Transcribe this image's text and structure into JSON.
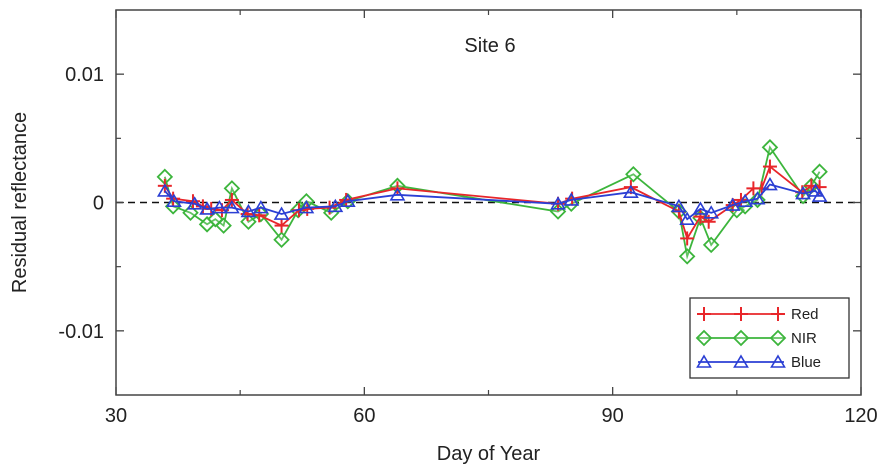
{
  "chart_data": {
    "type": "line",
    "title": "Site 6",
    "xlabel": "Day of Year",
    "ylabel": "Residual reflectance",
    "xlim": [
      30,
      120
    ],
    "ylim": [
      -0.015,
      0.015
    ],
    "xticks": [
      30,
      60,
      90,
      120
    ],
    "xtick_labels": [
      "30",
      "60",
      "90",
      "120"
    ],
    "yticks": [
      0.01,
      0,
      -0.01
    ],
    "ytick_labels": [
      "0.01",
      "0",
      "-0.01"
    ],
    "reference_line": {
      "y": 0,
      "style": "dashed"
    },
    "legend": {
      "position": "bottom-right"
    },
    "series": [
      {
        "name": "Red",
        "color": "#e8262a",
        "marker": "plus",
        "x": [
          35.9,
          36.9,
          39.3,
          40.5,
          41.5,
          42.8,
          44.0,
          45.9,
          47.3,
          50.0,
          52.1,
          53.1,
          55.8,
          57.8,
          64.0,
          83.4,
          85.1,
          92.2,
          98.0,
          99.0,
          100.6,
          101.6,
          104.5,
          105.5,
          107.0,
          108.0,
          109.0,
          112.9,
          114.0,
          115.0
        ],
        "y": [
          0.0013,
          0.0003,
          0.0001,
          -0.0003,
          -0.0005,
          -0.0006,
          0.0002,
          -0.0009,
          -0.001,
          -0.0018,
          -0.0006,
          -0.0005,
          -0.0004,
          0.0002,
          0.0011,
          -0.0001,
          0.0003,
          0.0012,
          -0.0007,
          -0.0028,
          -0.0011,
          -0.0015,
          -0.0002,
          0.0002,
          0.0011,
          0.0011,
          0.0028,
          0.0008,
          0.0013,
          0.0012
        ]
      },
      {
        "name": "NIR",
        "color": "#3cb53c",
        "marker": "diamond",
        "x": [
          35.9,
          36.9,
          39.0,
          41.0,
          42.0,
          43.0,
          44.0,
          46.0,
          47.5,
          50.0,
          52.0,
          53.0,
          56.0,
          58.0,
          64.0,
          83.4,
          85.0,
          92.5,
          98.0,
          99.0,
          100.6,
          101.9,
          105.0,
          106.0,
          107.5,
          109.0,
          113.0,
          114.0,
          115.0
        ],
        "y": [
          0.002,
          -0.0003,
          -0.0008,
          -0.0017,
          -0.0013,
          -0.0018,
          0.0011,
          -0.0015,
          -0.0009,
          -0.0029,
          -0.0006,
          0.0001,
          -0.0008,
          0.0001,
          0.0013,
          -0.0007,
          -0.0001,
          0.0022,
          -0.0007,
          -0.0042,
          -0.0012,
          -0.0033,
          -0.0006,
          -0.0003,
          0.0002,
          0.0043,
          0.0005,
          0.0013,
          0.0024
        ]
      },
      {
        "name": "Blue",
        "color": "#2b3fd4",
        "marker": "triangle",
        "x": [
          35.9,
          37.0,
          39.5,
          41.0,
          42.5,
          44.0,
          46.0,
          47.5,
          50.0,
          53.0,
          56.5,
          58.0,
          64.0,
          83.4,
          85.0,
          92.2,
          98.0,
          99.0,
          100.6,
          101.9,
          104.5,
          106.0,
          107.5,
          109.0,
          113.0,
          114.5,
          115.0
        ],
        "y": [
          0.0009,
          0.0001,
          -0.0001,
          -0.0005,
          -0.0004,
          -0.0004,
          -0.0007,
          -0.0004,
          -0.0009,
          -0.0004,
          -0.0003,
          0.0001,
          0.0006,
          -0.0001,
          0.0002,
          0.0008,
          -0.0003,
          -0.0013,
          -0.0005,
          -0.0008,
          -0.0002,
          0.0001,
          0.0003,
          0.0014,
          0.0007,
          0.0009,
          0.0005
        ]
      }
    ]
  }
}
